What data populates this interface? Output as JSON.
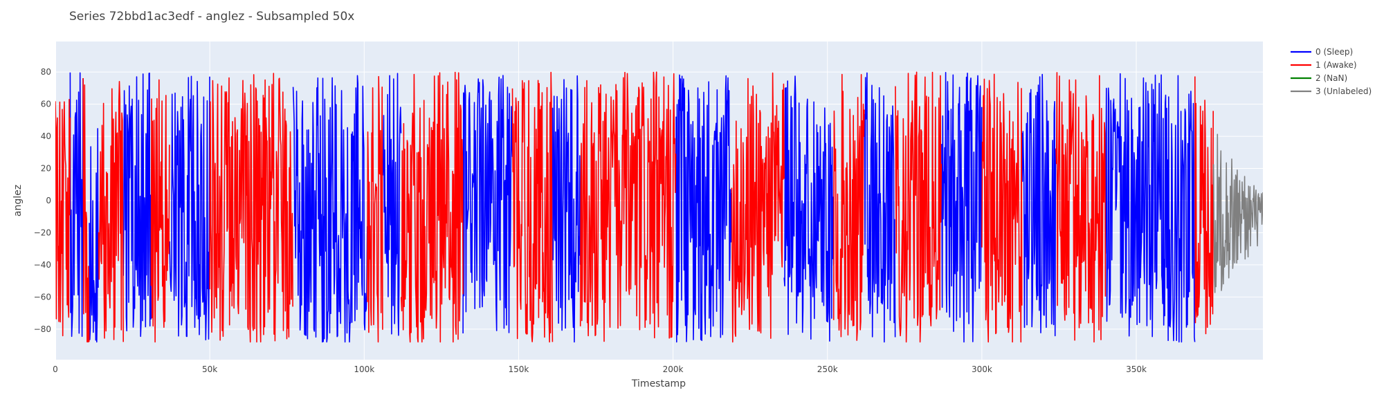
{
  "chart_data": {
    "type": "line",
    "title": "Series 72bbd1ac3edf - anglez - Subsampled 50x",
    "xlabel": "Timestamp",
    "ylabel": "anglez",
    "xlim": [
      0,
      391000
    ],
    "ylim": [
      -99,
      99
    ],
    "x_ticks": [
      0,
      50000,
      100000,
      150000,
      200000,
      250000,
      300000,
      350000
    ],
    "x_tick_labels": [
      "0",
      "50k",
      "100k",
      "150k",
      "200k",
      "250k",
      "300k",
      "350k"
    ],
    "y_ticks": [
      -80,
      -60,
      -40,
      -20,
      0,
      20,
      40,
      60,
      80
    ],
    "y_tick_labels": [
      "−80",
      "−60",
      "−40",
      "−20",
      "0",
      "20",
      "40",
      "60",
      "80"
    ],
    "grid": true,
    "legend_position": "top-right",
    "background_color": "#e5ecf6",
    "series": [
      {
        "name": "0 (Sleep)",
        "color": "#0000ff",
        "segments": [
          [
            4800,
            9000
          ],
          [
            11000,
            14000
          ],
          [
            22000,
            31000
          ],
          [
            37000,
            50000
          ],
          [
            77000,
            101000
          ],
          [
            106000,
            112000
          ],
          [
            132000,
            148000
          ],
          [
            161000,
            170000
          ],
          [
            201000,
            219000
          ],
          [
            236000,
            252000
          ],
          [
            262000,
            272000
          ],
          [
            287000,
            300000
          ],
          [
            313000,
            324000
          ],
          [
            340000,
            369000
          ]
        ]
      },
      {
        "name": "1 (Awake)",
        "color": "#ff0000",
        "segments": [
          [
            0,
            4800
          ],
          [
            9000,
            11000
          ],
          [
            14000,
            22000
          ],
          [
            31000,
            37000
          ],
          [
            50000,
            77000
          ],
          [
            101000,
            106000
          ],
          [
            112000,
            132000
          ],
          [
            148000,
            161000
          ],
          [
            170000,
            201000
          ],
          [
            219000,
            236000
          ],
          [
            252000,
            262000
          ],
          [
            272000,
            287000
          ],
          [
            300000,
            313000
          ],
          [
            324000,
            340000
          ],
          [
            369000,
            375000
          ]
        ]
      },
      {
        "name": "2 (NaN)",
        "color": "#008000",
        "segments": []
      },
      {
        "name": "3 (Unlabeled)",
        "color": "#808080",
        "segments": [
          [
            375000,
            391000
          ]
        ]
      }
    ]
  }
}
